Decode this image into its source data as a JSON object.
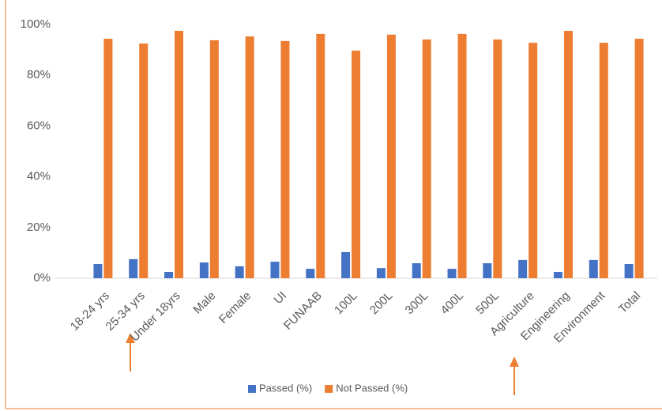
{
  "chart_data": {
    "type": "bar",
    "categories": [
      "18-24 yrs",
      "25-34 yrs",
      "Under 18yrs",
      "Male",
      "Female",
      "UI",
      "FUNAAB",
      "100L",
      "200L",
      "300L",
      "400L",
      "500L",
      "Agriculture",
      "Engineering",
      "Environment",
      "Total"
    ],
    "series": [
      {
        "name": "Passed (%)",
        "color": "#4472c4",
        "values": [
          5.6,
          7.5,
          2.5,
          6.2,
          4.7,
          6.5,
          3.7,
          10.3,
          4.0,
          5.9,
          3.7,
          5.9,
          7.2,
          2.5,
          7.2,
          5.6
        ]
      },
      {
        "name": "Not Passed (%)",
        "color": "#ed7d31",
        "values": [
          94.4,
          92.5,
          97.5,
          93.8,
          95.3,
          93.5,
          96.3,
          89.7,
          96.0,
          94.1,
          96.3,
          94.1,
          92.8,
          97.5,
          92.8,
          94.4
        ]
      }
    ],
    "ylim": [
      0,
      100
    ],
    "yticks": [
      {
        "value": 0,
        "label": "0%"
      },
      {
        "value": 20,
        "label": "20%"
      },
      {
        "value": 40,
        "label": "40%"
      },
      {
        "value": 60,
        "label": "60%"
      },
      {
        "value": 80,
        "label": "80%"
      },
      {
        "value": 100,
        "label": "100%"
      }
    ],
    "grid": false,
    "legend": "bottom"
  }
}
